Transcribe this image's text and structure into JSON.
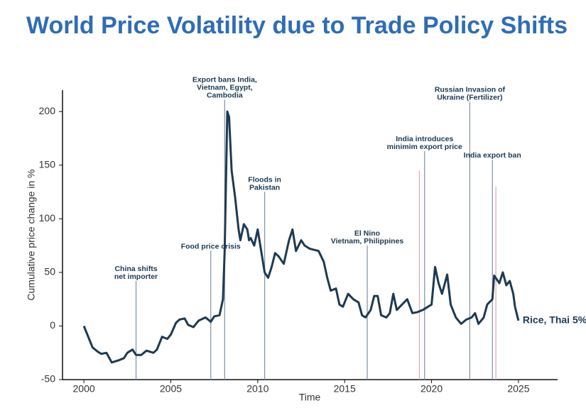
{
  "chart_data": {
    "type": "line",
    "title": "World Price Volatility due to Trade Policy Shifts",
    "xlabel": "Time",
    "ylabel": "Cumulative price change in %",
    "xlim": [
      1998.77,
      2027.25
    ],
    "ylim": [
      -50,
      220
    ],
    "xticks": [
      2000,
      2005,
      2010,
      2015,
      2020,
      2025
    ],
    "yticks": [
      -50,
      0,
      50,
      100,
      150,
      200
    ],
    "series": [
      {
        "name": "Rice, Thai 5%",
        "color": "#1d3a52",
        "x": [
          2000.0,
          2000.3,
          2000.5,
          2000.8,
          2001.0,
          2001.3,
          2001.6,
          2002.0,
          2002.3,
          2002.5,
          2002.8,
          2003.0,
          2003.3,
          2003.6,
          2004.0,
          2004.2,
          2004.5,
          2004.8,
          2005.0,
          2005.3,
          2005.5,
          2005.8,
          2006.0,
          2006.3,
          2006.6,
          2007.0,
          2007.3,
          2007.5,
          2007.8,
          2008.0,
          2008.1,
          2008.25,
          2008.35,
          2008.5,
          2008.7,
          2008.9,
          2009.0,
          2009.2,
          2009.4,
          2009.5,
          2009.6,
          2009.8,
          2010.0,
          2010.2,
          2010.4,
          2010.6,
          2010.8,
          2011.0,
          2011.2,
          2011.5,
          2011.8,
          2012.0,
          2012.2,
          2012.5,
          2012.7,
          2013.0,
          2013.5,
          2013.8,
          2014.0,
          2014.2,
          2014.5,
          2014.7,
          2014.9,
          2015.2,
          2015.5,
          2015.8,
          2016.0,
          2016.2,
          2016.5,
          2016.7,
          2016.9,
          2017.1,
          2017.4,
          2017.6,
          2017.8,
          2018.0,
          2018.3,
          2018.6,
          2018.9,
          2019.2,
          2019.5,
          2019.8,
          2020.0,
          2020.2,
          2020.4,
          2020.6,
          2020.9,
          2021.1,
          2021.4,
          2021.7,
          2022.0,
          2022.3,
          2022.5,
          2022.7,
          2023.0,
          2023.2,
          2023.5,
          2023.6,
          2023.9,
          2024.1,
          2024.3,
          2024.5,
          2024.7,
          2024.8,
          2025.0
        ],
        "values": [
          0,
          -12,
          -20,
          -24,
          -26,
          -25,
          -34,
          -32,
          -30,
          -25,
          -22,
          -27,
          -27,
          -23,
          -25,
          -22,
          -10,
          -12,
          -8,
          3,
          6,
          7,
          1,
          -1,
          5,
          8,
          4,
          9,
          10,
          25,
          70,
          200,
          195,
          145,
          120,
          90,
          80,
          95,
          90,
          80,
          82,
          75,
          90,
          70,
          50,
          45,
          55,
          68,
          65,
          58,
          80,
          90,
          70,
          80,
          75,
          72,
          70,
          60,
          45,
          33,
          35,
          20,
          18,
          30,
          25,
          22,
          10,
          8,
          15,
          28,
          28,
          10,
          8,
          12,
          30,
          15,
          20,
          25,
          12,
          13,
          15,
          18,
          20,
          55,
          40,
          30,
          48,
          20,
          8,
          2,
          6,
          8,
          12,
          2,
          8,
          20,
          25,
          47,
          40,
          50,
          38,
          42,
          30,
          18,
          5
        ]
      }
    ],
    "annotations": [
      {
        "text": [
          "China shifts",
          "net importer"
        ],
        "x": 2003.0,
        "y": 42,
        "color": "#7f90a3"
      },
      {
        "text": [
          "Food price crisis"
        ],
        "x": 2007.3,
        "y": 70,
        "color": "#7f90a3"
      },
      {
        "text": [
          "Export bans India,",
          "Vietnam, Egypt,",
          "Cambodia"
        ],
        "x": 2008.1,
        "y": 211,
        "color": "#7f90a3"
      },
      {
        "text": [
          "Floods in",
          "Pakistan"
        ],
        "x": 2010.4,
        "y": 125,
        "color": "#7f90a3"
      },
      {
        "text": [
          "El Nino",
          "Vietnam, Philippines"
        ],
        "x": 2016.3,
        "y": 75,
        "color": "#7f90a3"
      },
      {
        "x": 2019.3,
        "y": 145,
        "color": "#e3a6b6"
      },
      {
        "text": [
          "India introduces",
          "minimim export price"
        ],
        "x": 2019.6,
        "y": 163,
        "color": "#7f90a3"
      },
      {
        "text": [
          "Russian Invasion of",
          "Ukraine (Fertilizer)"
        ],
        "x": 2022.2,
        "y": 209,
        "color": "#7f90a3"
      },
      {
        "text": [
          "India export ban"
        ],
        "x": 2023.5,
        "y": 155,
        "color": "#7f90a3"
      },
      {
        "x": 2023.7,
        "y": 130,
        "color": "#e3a6b6"
      }
    ]
  }
}
